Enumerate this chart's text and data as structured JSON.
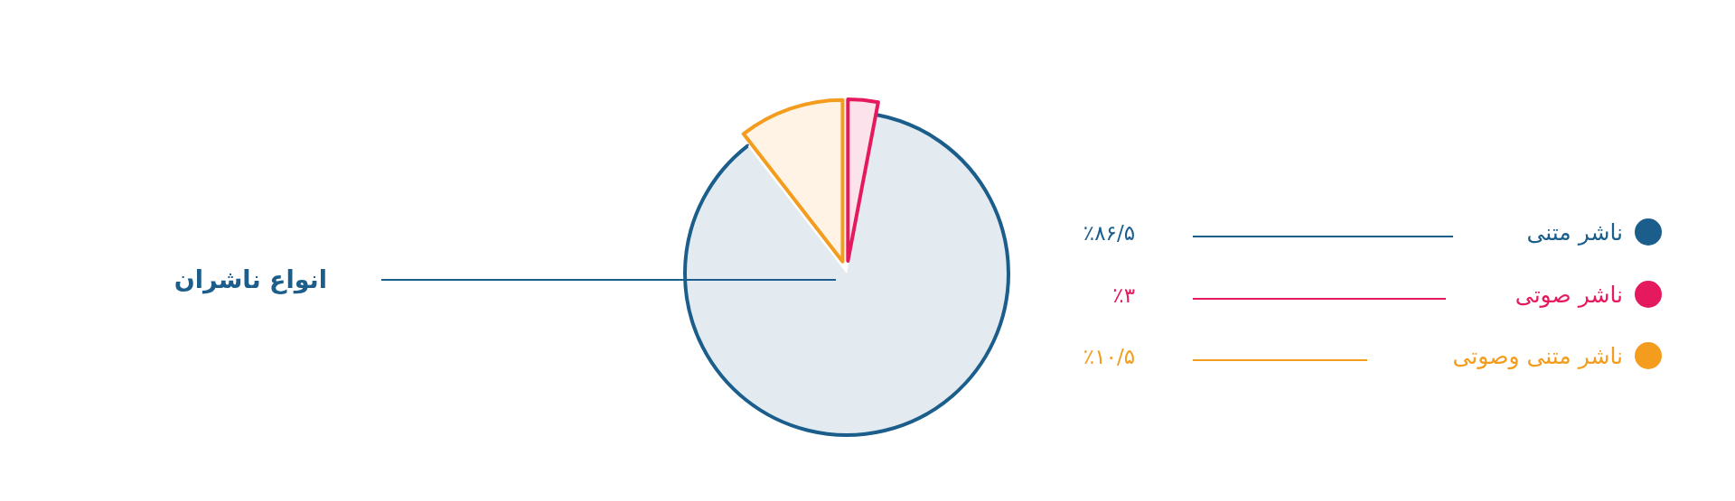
{
  "chart_data": {
    "type": "pie",
    "title": "انواع ناشران",
    "categories": [
      "ناشر متنی",
      "ناشر صوتی",
      "ناشر متنی وصوتی"
    ],
    "values": [
      86.5,
      3,
      10.5
    ],
    "colors": [
      "#1b5e8c",
      "#e5195e",
      "#f39c1e"
    ],
    "value_labels": [
      "٪۸۶/۵",
      "٪۳",
      "٪۱۰/۵"
    ],
    "legend": "right"
  }
}
